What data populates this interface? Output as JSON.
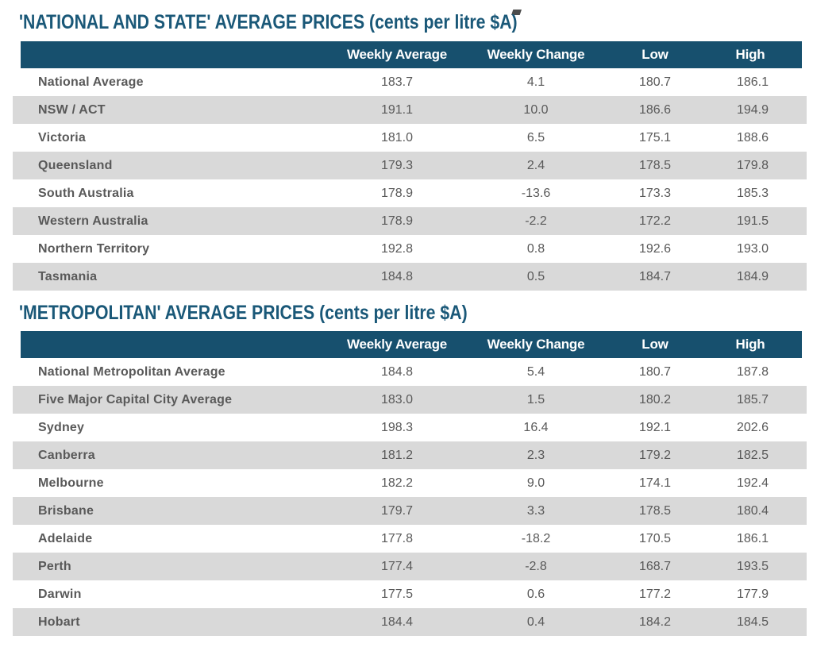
{
  "colors": {
    "header_bg": "#17506E",
    "title": "#1A5878",
    "row_alt_bg": "#D9D9D9",
    "text": "#595959"
  },
  "tables": [
    {
      "title": "'NATIONAL AND STATE' AVERAGE PRICES (cents per litre $A)",
      "columns": [
        "Weekly Average",
        "Weekly Change",
        "Low",
        "High"
      ],
      "rows": [
        {
          "label": "National Average",
          "weekly_average": "183.7",
          "weekly_change": "4.1",
          "low": "180.7",
          "high": "186.1"
        },
        {
          "label": "NSW / ACT",
          "weekly_average": "191.1",
          "weekly_change": "10.0",
          "low": "186.6",
          "high": "194.9"
        },
        {
          "label": "Victoria",
          "weekly_average": "181.0",
          "weekly_change": "6.5",
          "low": "175.1",
          "high": "188.6"
        },
        {
          "label": "Queensland",
          "weekly_average": "179.3",
          "weekly_change": "2.4",
          "low": "178.5",
          "high": "179.8"
        },
        {
          "label": "South Australia",
          "weekly_average": "178.9",
          "weekly_change": "-13.6",
          "low": "173.3",
          "high": "185.3"
        },
        {
          "label": "Western Australia",
          "weekly_average": "178.9",
          "weekly_change": "-2.2",
          "low": "172.2",
          "high": "191.5"
        },
        {
          "label": "Northern Territory",
          "weekly_average": "192.8",
          "weekly_change": "0.8",
          "low": "192.6",
          "high": "193.0"
        },
        {
          "label": "Tasmania",
          "weekly_average": "184.8",
          "weekly_change": "0.5",
          "low": "184.7",
          "high": "184.9"
        }
      ]
    },
    {
      "title": "'METROPOLITAN' AVERAGE PRICES (cents per litre $A)",
      "columns": [
        "Weekly Average",
        "Weekly Change",
        "Low",
        "High"
      ],
      "rows": [
        {
          "label": "National Metropolitan Average",
          "weekly_average": "184.8",
          "weekly_change": "5.4",
          "low": "180.7",
          "high": "187.8"
        },
        {
          "label": "Five Major Capital City Average",
          "weekly_average": "183.0",
          "weekly_change": "1.5",
          "low": "180.2",
          "high": "185.7"
        },
        {
          "label": "Sydney",
          "weekly_average": "198.3",
          "weekly_change": "16.4",
          "low": "192.1",
          "high": "202.6"
        },
        {
          "label": "Canberra",
          "weekly_average": "181.2",
          "weekly_change": "2.3",
          "low": "179.2",
          "high": "182.5"
        },
        {
          "label": "Melbourne",
          "weekly_average": "182.2",
          "weekly_change": "9.0",
          "low": "174.1",
          "high": "192.4"
        },
        {
          "label": "Brisbane",
          "weekly_average": "179.7",
          "weekly_change": "3.3",
          "low": "178.5",
          "high": "180.4"
        },
        {
          "label": "Adelaide",
          "weekly_average": "177.8",
          "weekly_change": "-18.2",
          "low": "170.5",
          "high": "186.1"
        },
        {
          "label": "Perth",
          "weekly_average": "177.4",
          "weekly_change": "-2.8",
          "low": "168.7",
          "high": "193.5"
        },
        {
          "label": "Darwin",
          "weekly_average": "177.5",
          "weekly_change": "0.6",
          "low": "177.2",
          "high": "177.9"
        },
        {
          "label": "Hobart",
          "weekly_average": "184.4",
          "weekly_change": "0.4",
          "low": "184.2",
          "high": "184.5"
        }
      ]
    }
  ]
}
